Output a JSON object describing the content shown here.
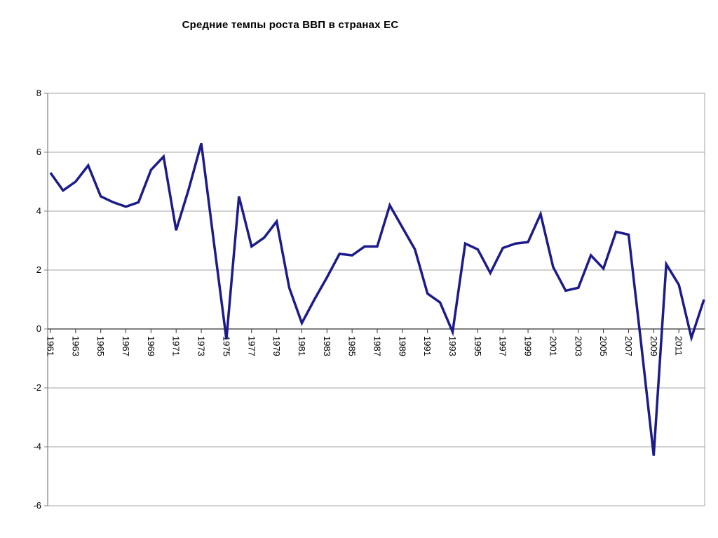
{
  "chart_data": {
    "type": "line",
    "title": "Средние темпы роста ВВП в странах ЕС",
    "xlabel": "",
    "ylabel": "",
    "x": [
      1961,
      1962,
      1963,
      1964,
      1965,
      1966,
      1967,
      1968,
      1969,
      1970,
      1971,
      1972,
      1973,
      1974,
      1975,
      1976,
      1977,
      1978,
      1979,
      1980,
      1981,
      1982,
      1983,
      1984,
      1985,
      1986,
      1987,
      1988,
      1989,
      1990,
      1991,
      1992,
      1993,
      1994,
      1995,
      1996,
      1997,
      1998,
      1999,
      2000,
      2001,
      2002,
      2003,
      2004,
      2005,
      2006,
      2007,
      2008,
      2009,
      2010,
      2011,
      2012,
      2013
    ],
    "values": [
      5.3,
      4.7,
      5.0,
      5.55,
      4.5,
      4.3,
      4.15,
      4.3,
      5.4,
      5.85,
      3.35,
      4.75,
      6.3,
      2.95,
      -0.35,
      4.5,
      2.8,
      3.1,
      3.65,
      1.4,
      0.2,
      1.0,
      1.75,
      2.55,
      2.5,
      2.8,
      2.8,
      4.2,
      3.45,
      2.7,
      1.2,
      0.9,
      -0.1,
      2.9,
      2.7,
      1.9,
      2.75,
      2.9,
      2.95,
      3.9,
      2.1,
      1.3,
      1.4,
      2.5,
      2.05,
      3.3,
      3.2,
      -0.5,
      -4.3,
      2.2,
      1.5,
      -0.3,
      1.0
    ],
    "x_tick_labels": [
      "1961",
      "1963",
      "1965",
      "1967",
      "1969",
      "1971",
      "1973",
      "1975",
      "1977",
      "1979",
      "1981",
      "1983",
      "1985",
      "1987",
      "1989",
      "1991",
      "1993",
      "1995",
      "1997",
      "1999",
      "2001",
      "2003",
      "2005",
      "2007",
      "2009",
      "2011"
    ],
    "y_ticks": [
      8,
      6,
      4,
      2,
      0,
      -2,
      -4,
      -6
    ],
    "ylim": [
      -6,
      8
    ],
    "grid": true,
    "legend": false,
    "x_labels_rotated_degrees": 90,
    "colors": {
      "line": "#1b1b8a",
      "gridline": "#a6a6a6",
      "y_axis": "#808080",
      "right_border": "#a6a6a6",
      "zero_axis": "#333333",
      "text": "#000000",
      "background": "#ffffff"
    }
  }
}
